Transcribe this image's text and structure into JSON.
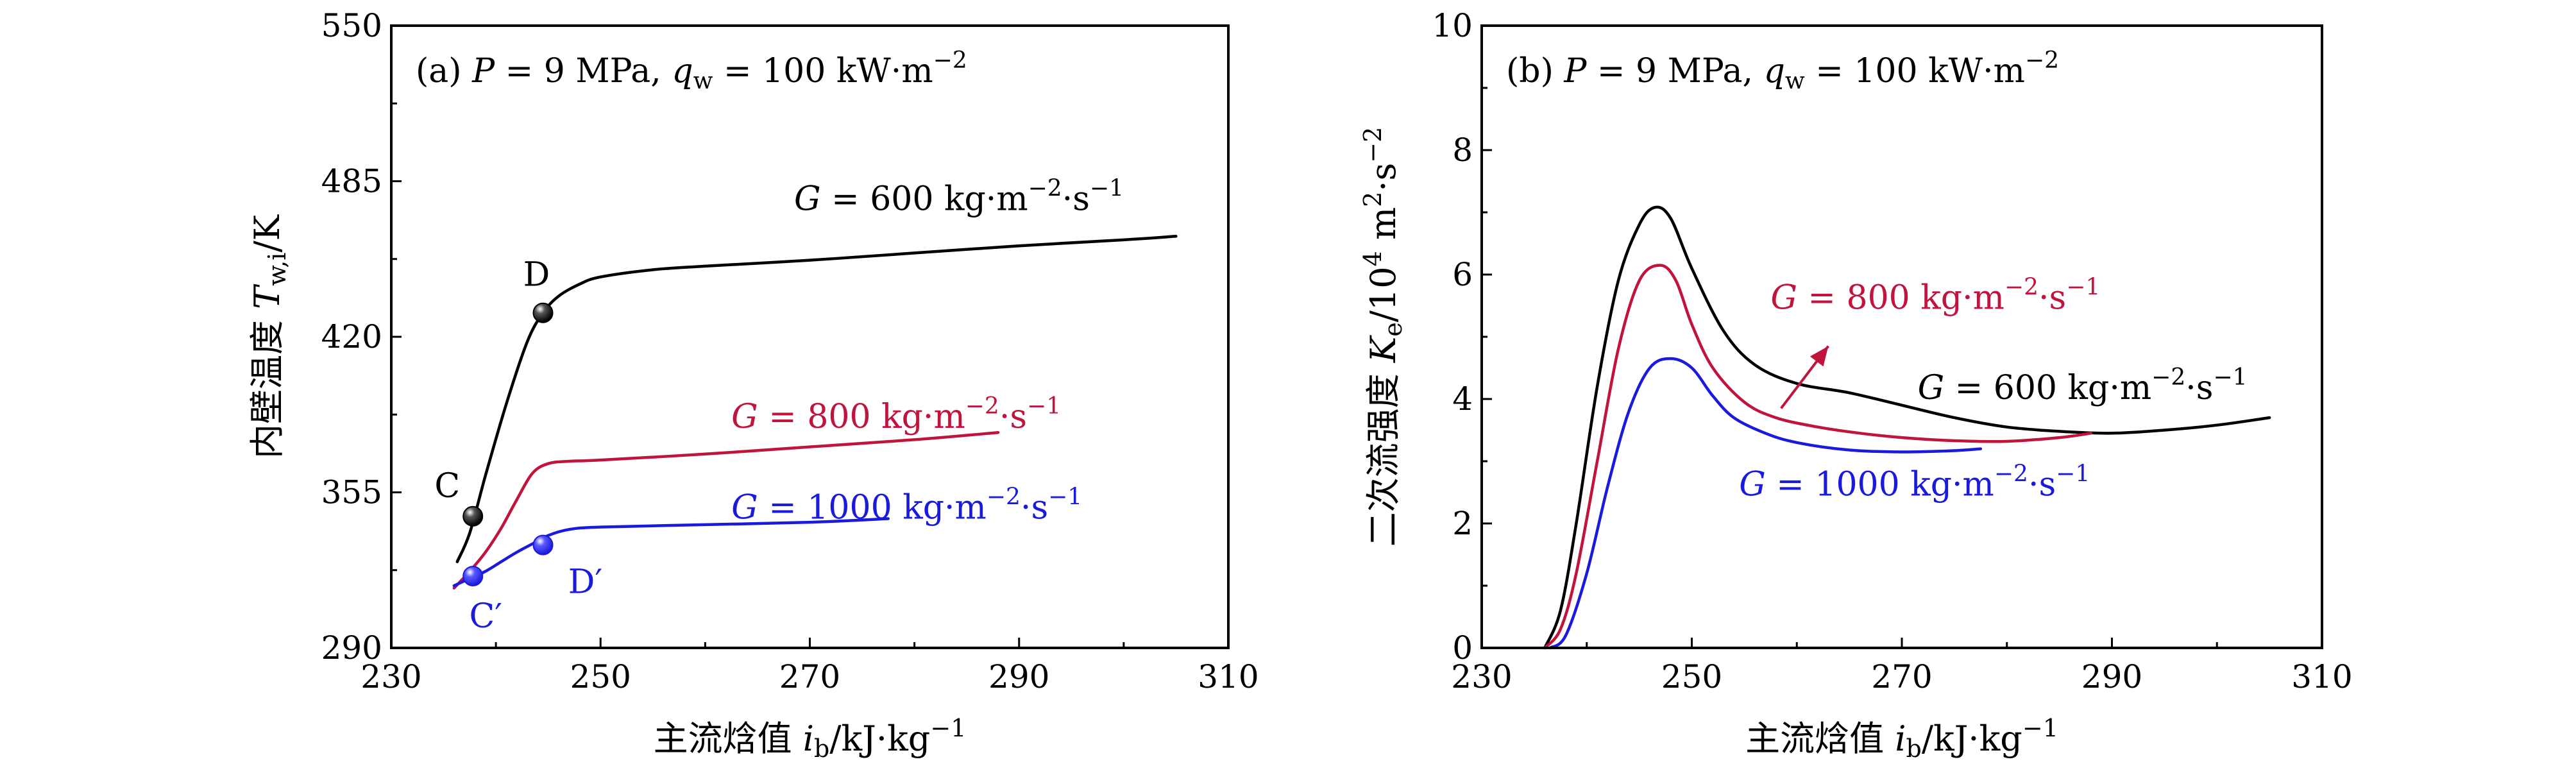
{
  "colors": {
    "g600": "#000000",
    "g800": "#c0143c",
    "g1000": "#1a1adc"
  },
  "chart_data": [
    {
      "type": "line",
      "panel_label": "(a) P = 9 MPa, q_w = 100 kW·m⁻²",
      "xlabel": "主流焓值 i_b/kJ·kg⁻¹",
      "ylabel": "内壁温度 T_w,i/K",
      "xlim": [
        230,
        310
      ],
      "ylim": [
        290,
        550
      ],
      "xticks": [
        "230",
        "250",
        "270",
        "290",
        "310"
      ],
      "yticks": [
        "290",
        "355",
        "420",
        "485",
        "550"
      ],
      "series": [
        {
          "name": "G = 600 kg·m⁻²·s⁻¹",
          "color": "#000000",
          "x": [
            236.3,
            237.5,
            239.0,
            241.0,
            243.0,
            244.5,
            246.0,
            248.0,
            250.0,
            255.0,
            260.0,
            270.0,
            280.0,
            290.0,
            300.0,
            305.0
          ],
          "y": [
            326,
            338,
            362,
            392,
            418,
            430,
            437,
            442,
            445,
            448,
            449.5,
            452,
            455,
            458,
            460.5,
            462
          ]
        },
        {
          "name": "G = 800 kg·m⁻²·s⁻¹",
          "color": "#c0143c",
          "x": [
            236.0,
            237.5,
            239.0,
            240.5,
            242.0,
            243.5,
            245.0,
            247.0,
            250.0,
            260.0,
            270.0,
            280.0,
            288.0
          ],
          "y": [
            315,
            322,
            330,
            340,
            352,
            363,
            367,
            368,
            368.5,
            371,
            374,
            377,
            380
          ]
        },
        {
          "name": "G = 1000 kg·m⁻²·s⁻¹",
          "color": "#1a1adc",
          "x": [
            236.0,
            237.5,
            239.0,
            240.5,
            242.0,
            243.5,
            245.0,
            247.0,
            250.0,
            260.0,
            270.0,
            277.5
          ],
          "y": [
            316,
            319,
            322,
            326,
            330,
            333.5,
            337,
            339.5,
            340.5,
            341.5,
            342.5,
            344
          ]
        }
      ],
      "points": [
        {
          "label": "C",
          "x": 237.8,
          "y": 345,
          "color": "#000000",
          "label_color": "#000000"
        },
        {
          "label": "D",
          "x": 244.5,
          "y": 430,
          "color": "#000000",
          "label_color": "#000000"
        },
        {
          "label": "C′",
          "x": 237.8,
          "y": 320,
          "color": "#1a1adc",
          "label_color": "#1a1adc"
        },
        {
          "label": "D′",
          "x": 244.5,
          "y": 333,
          "color": "#1a1adc",
          "label_color": "#1a1adc"
        }
      ]
    },
    {
      "type": "line",
      "panel_label": "(b) P = 9 MPa, q_w = 100 kW·m⁻²",
      "xlabel": "主流焓值 i_b/kJ·kg⁻¹",
      "ylabel": "二次流强度 K_e/10⁴ m²·s⁻²",
      "xlim": [
        230,
        310
      ],
      "ylim": [
        0,
        10
      ],
      "xticks": [
        "230",
        "250",
        "270",
        "290",
        "310"
      ],
      "yticks": [
        "0",
        "2",
        "4",
        "6",
        "8",
        "10"
      ],
      "series": [
        {
          "name": "G = 600 kg·m⁻²·s⁻¹",
          "color": "#000000",
          "x": [
            236.0,
            237.5,
            239.0,
            241.0,
            243.0,
            245.0,
            246.5,
            248.0,
            250.0,
            253.0,
            256.0,
            260.0,
            265.0,
            270.0,
            275.0,
            280.0,
            285.0,
            290.0,
            295.0,
            300.0,
            305.0
          ],
          "y": [
            0,
            0.6,
            2.0,
            4.2,
            5.9,
            6.8,
            7.08,
            6.9,
            6.1,
            5.1,
            4.55,
            4.25,
            4.1,
            3.9,
            3.7,
            3.55,
            3.48,
            3.45,
            3.5,
            3.58,
            3.7
          ]
        },
        {
          "name": "G = 800 kg·m⁻²·s⁻¹",
          "color": "#c0143c",
          "x": [
            236.0,
            237.5,
            239.0,
            241.0,
            243.0,
            245.0,
            247.0,
            248.5,
            250.0,
            252.0,
            255.0,
            258.0,
            262.0,
            266.0,
            270.0,
            275.0,
            280.0,
            285.0,
            288.0
          ],
          "y": [
            0,
            0.3,
            1.2,
            3.0,
            4.8,
            5.9,
            6.15,
            5.9,
            5.2,
            4.5,
            3.95,
            3.7,
            3.55,
            3.45,
            3.38,
            3.33,
            3.32,
            3.38,
            3.45
          ]
        },
        {
          "name": "G = 1000 kg·m⁻²·s⁻¹",
          "color": "#1a1adc",
          "x": [
            236.5,
            238.0,
            240.0,
            242.0,
            244.0,
            246.0,
            248.0,
            250.0,
            252.0,
            254.0,
            257.0,
            260.0,
            265.0,
            270.0,
            275.0,
            277.5
          ],
          "y": [
            0,
            0.2,
            1.2,
            2.6,
            3.8,
            4.5,
            4.65,
            4.5,
            4.05,
            3.7,
            3.45,
            3.3,
            3.18,
            3.15,
            3.17,
            3.2
          ]
        }
      ],
      "arrow_from": [
        258.5,
        3.85
      ],
      "arrow_to": [
        263.0,
        4.85
      ]
    }
  ],
  "annotations": {
    "a_g600": "G = 600 kg·m⁻²·s⁻¹",
    "a_g800": "G = 800 kg·m⁻²·s⁻¹",
    "a_g1000": "G = 1000 kg·m⁻²·s⁻¹",
    "b_g600": "G = 600 kg·m⁻²·s⁻¹",
    "b_g800": "G = 800 kg·m⁻²·s⁻¹",
    "b_g1000": "G = 1000 kg·m⁻²·s⁻¹"
  }
}
